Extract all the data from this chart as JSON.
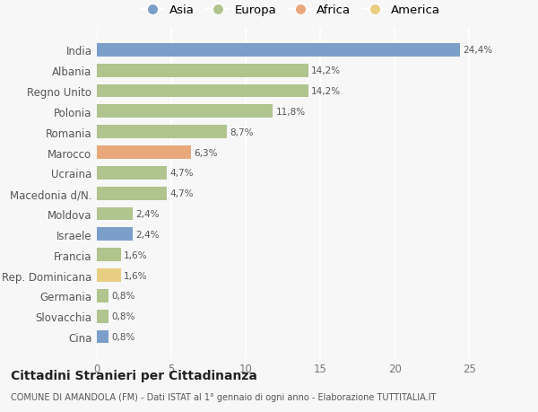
{
  "countries": [
    "India",
    "Albania",
    "Regno Unito",
    "Polonia",
    "Romania",
    "Marocco",
    "Ucraina",
    "Macedonia d/N.",
    "Moldova",
    "Israele",
    "Francia",
    "Rep. Dominicana",
    "Germania",
    "Slovacchia",
    "Cina"
  ],
  "values": [
    24.4,
    14.2,
    14.2,
    11.8,
    8.7,
    6.3,
    4.7,
    4.7,
    2.4,
    2.4,
    1.6,
    1.6,
    0.8,
    0.8,
    0.8
  ],
  "labels": [
    "24,4%",
    "14,2%",
    "14,2%",
    "11,8%",
    "8,7%",
    "6,3%",
    "4,7%",
    "4,7%",
    "2,4%",
    "2,4%",
    "1,6%",
    "1,6%",
    "0,8%",
    "0,8%",
    "0,8%"
  ],
  "continents": [
    "Asia",
    "Europa",
    "Europa",
    "Europa",
    "Europa",
    "Africa",
    "Europa",
    "Europa",
    "Europa",
    "Asia",
    "Europa",
    "America",
    "Europa",
    "Europa",
    "Asia"
  ],
  "continent_colors": {
    "Asia": "#7b9fc9",
    "Europa": "#b0c48e",
    "Africa": "#e8a87c",
    "America": "#e8ce82"
  },
  "legend_order": [
    "Asia",
    "Europa",
    "Africa",
    "America"
  ],
  "background_color": "#f7f7f7",
  "title": "Cittadini Stranieri per Cittadinanza",
  "subtitle": "COMUNE DI AMANDOLA (FM) - Dati ISTAT al 1° gennaio di ogni anno - Elaborazione TUTTITALIA.IT",
  "xlim": [
    0,
    26
  ],
  "xticks": [
    0,
    5,
    10,
    15,
    20,
    25
  ]
}
